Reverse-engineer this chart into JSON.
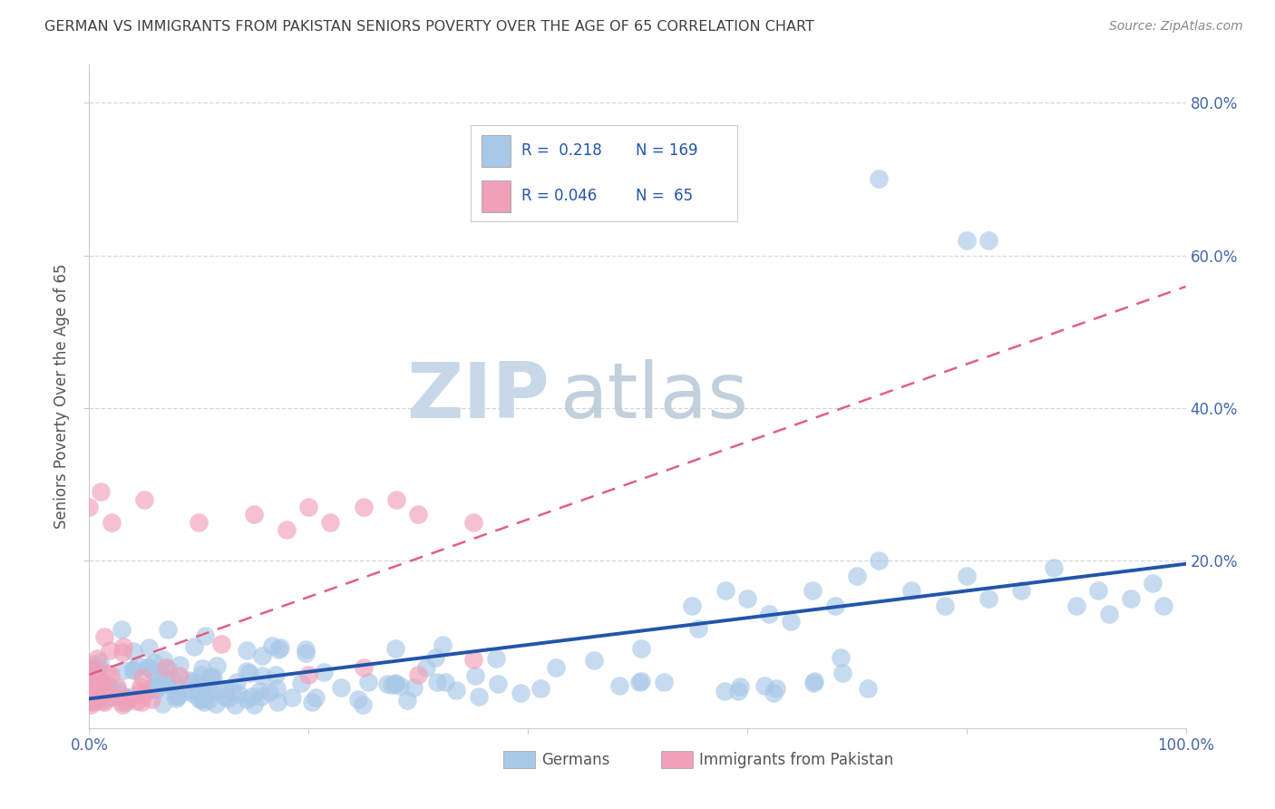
{
  "title": "GERMAN VS IMMIGRANTS FROM PAKISTAN SENIORS POVERTY OVER THE AGE OF 65 CORRELATION CHART",
  "source": "Source: ZipAtlas.com",
  "ylabel": "Seniors Poverty Over the Age of 65",
  "xlim": [
    0.0,
    1.0
  ],
  "ylim": [
    -0.02,
    0.85
  ],
  "xticks": [
    0.0,
    0.2,
    0.4,
    0.6,
    0.8,
    1.0
  ],
  "xtick_labels": [
    "0.0%",
    "",
    "",
    "",
    "",
    "100.0%"
  ],
  "ytick_positions": [
    0.2,
    0.4,
    0.6,
    0.8
  ],
  "ytick_labels": [
    "20.0%",
    "40.0%",
    "60.0%",
    "80.0%"
  ],
  "color_blue": "#a8c8e8",
  "color_pink": "#f0a0b8",
  "trendline_blue": "#2255aa",
  "trendline_pink": "#e06080",
  "grid_color": "#d0d8e0",
  "title_color": "#404040",
  "axis_label_color": "#555555",
  "tick_color": "#4466aa",
  "source_color": "#888888",
  "legend_text_color": "#2255aa",
  "background_color": "#ffffff",
  "watermark_color": "#c8d8e8",
  "right_ytick_color": "#4466aa"
}
